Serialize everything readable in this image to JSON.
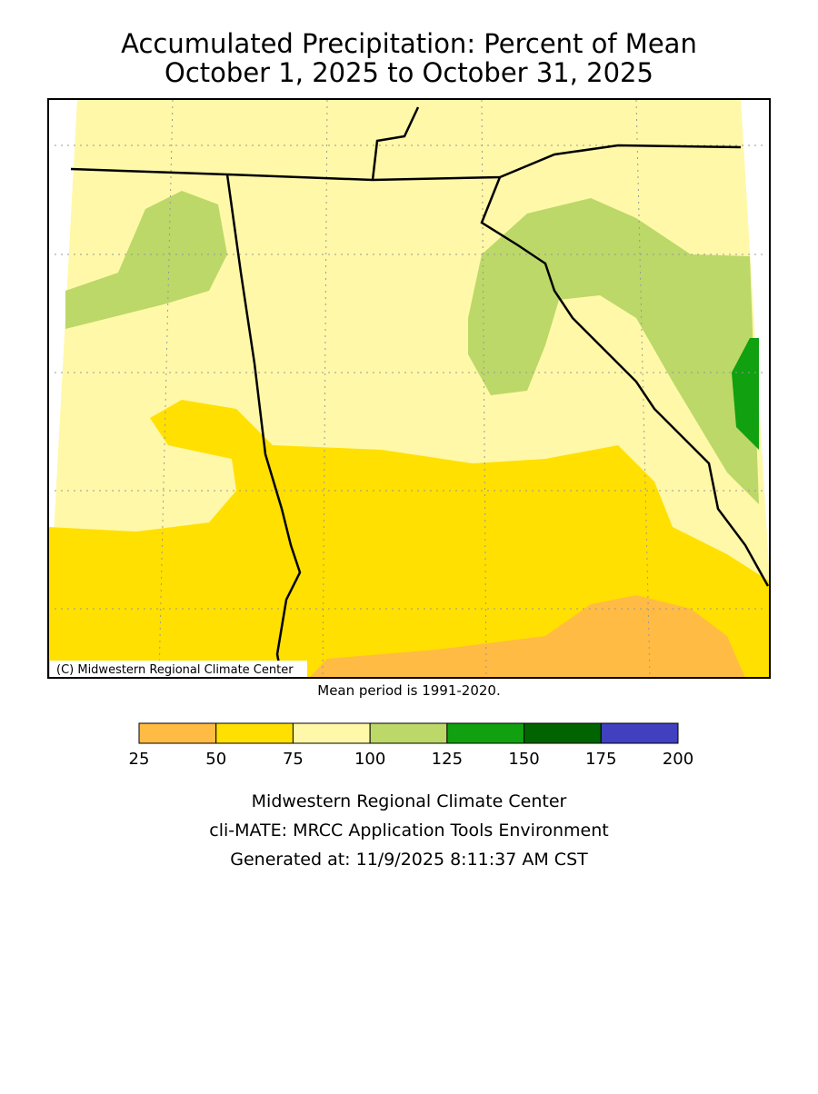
{
  "title": [
    "Accumulated Precipitation: Percent of Mean",
    "October 1, 2025 to October 31, 2025"
  ],
  "map": {
    "credit": "(C) Midwestern Regional Climate Center",
    "note": "Mean period is 1991-2020."
  },
  "legend": {
    "bins": [
      25,
      50,
      75,
      100,
      125,
      150,
      175,
      200
    ],
    "colors": [
      "#ffbb44",
      "#ffe000",
      "#fff8a8",
      "#bcd868",
      "#10a010",
      "#006400",
      "#4040c0"
    ]
  },
  "footer": [
    "Midwestern Regional Climate Center",
    "cli-MATE: MRCC Application Tools Environment",
    "Generated at: 11/9/2025 8:11:37 AM CST"
  ]
}
